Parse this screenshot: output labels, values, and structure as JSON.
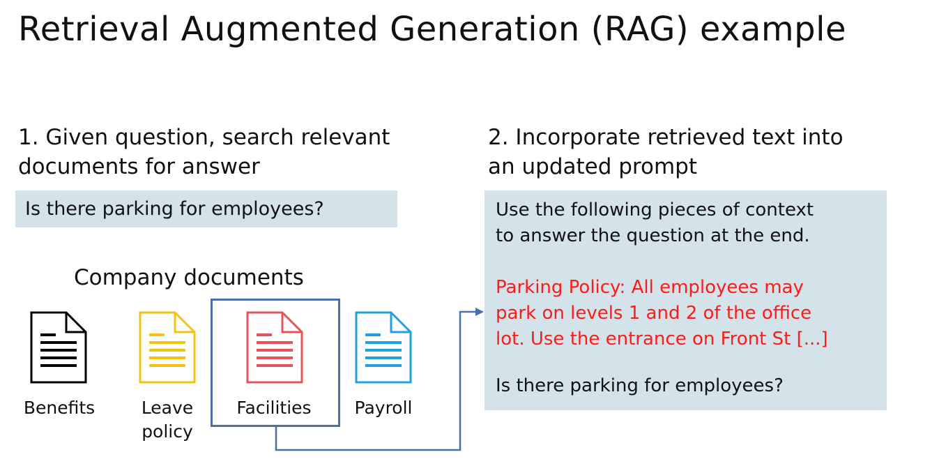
{
  "title": "Retrieval Augmented Generation (RAG) example",
  "step1": {
    "heading_line1": "1. Given question, search relevant",
    "heading_line2": "documents for answer",
    "question": "Is there parking for employees?"
  },
  "documents": {
    "label": "Company documents",
    "items": [
      {
        "label_line1": "Benefits",
        "label_line2": "",
        "color": "#000000"
      },
      {
        "label_line1": "Leave",
        "label_line2": "policy",
        "color": "#f5c211"
      },
      {
        "label_line1": "Facilities",
        "label_line2": "",
        "color": "#e8535b",
        "selected": true
      },
      {
        "label_line1": "Payroll",
        "label_line2": "",
        "color": "#1fa0e0"
      }
    ]
  },
  "step2": {
    "heading_line1": "2. Incorporate retrieved text into",
    "heading_line2": "an updated prompt",
    "instruction_line1": "Use the following pieces of context",
    "instruction_line2": "to answer the question at the end.",
    "context": "Parking Policy: All employees may\npark on levels 1 and 2 of the office\nlot. Use the entrance on Front St [...]",
    "question": "Is there parking for employees?"
  },
  "colors": {
    "panel_bg": "#d4e3ea",
    "context_text": "#ff1a1a",
    "connector": "#4a6fb0"
  }
}
